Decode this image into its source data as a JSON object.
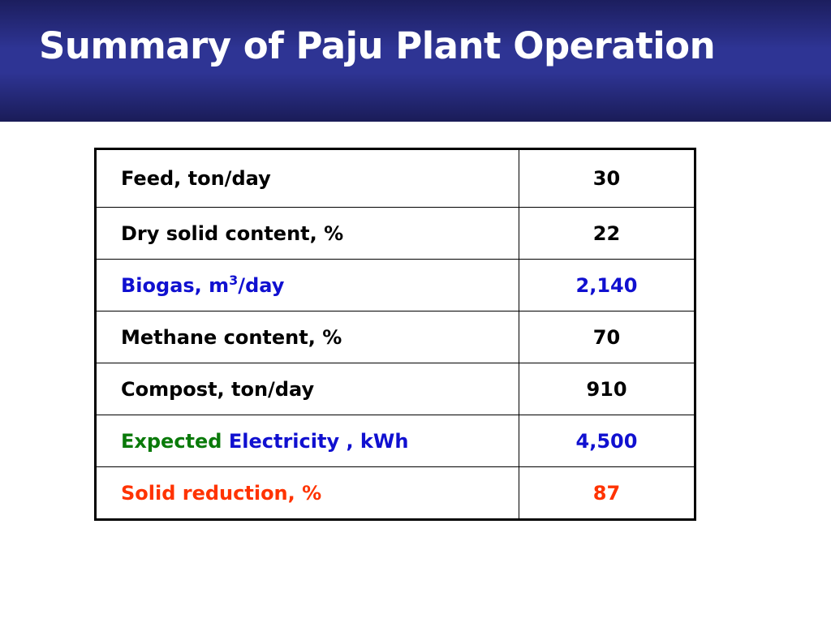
{
  "title": "Summary of Paju Plant Operation",
  "colors": {
    "title_bar": "#2e3494",
    "title_text": "#ffffff",
    "black": "#000000",
    "blue": "#1010d0",
    "green": "#0a7a0a",
    "red": "#ff3300"
  },
  "rows": [
    {
      "label": "Feed, ton/day",
      "value": "30"
    },
    {
      "label": "Dry solid content, %",
      "value": "22"
    },
    {
      "label_pre": "Biogas, m",
      "label_sup": "3",
      "label_post": "/day",
      "value": "2,140"
    },
    {
      "label": "Methane content, %",
      "value": "70"
    },
    {
      "label": "Compost, ton/day",
      "value": "910"
    },
    {
      "label_part1": "Expected",
      "label_part2": " Electricity , kWh",
      "value": "4,500"
    },
    {
      "label": "Solid reduction, %",
      "value": "87"
    }
  ]
}
